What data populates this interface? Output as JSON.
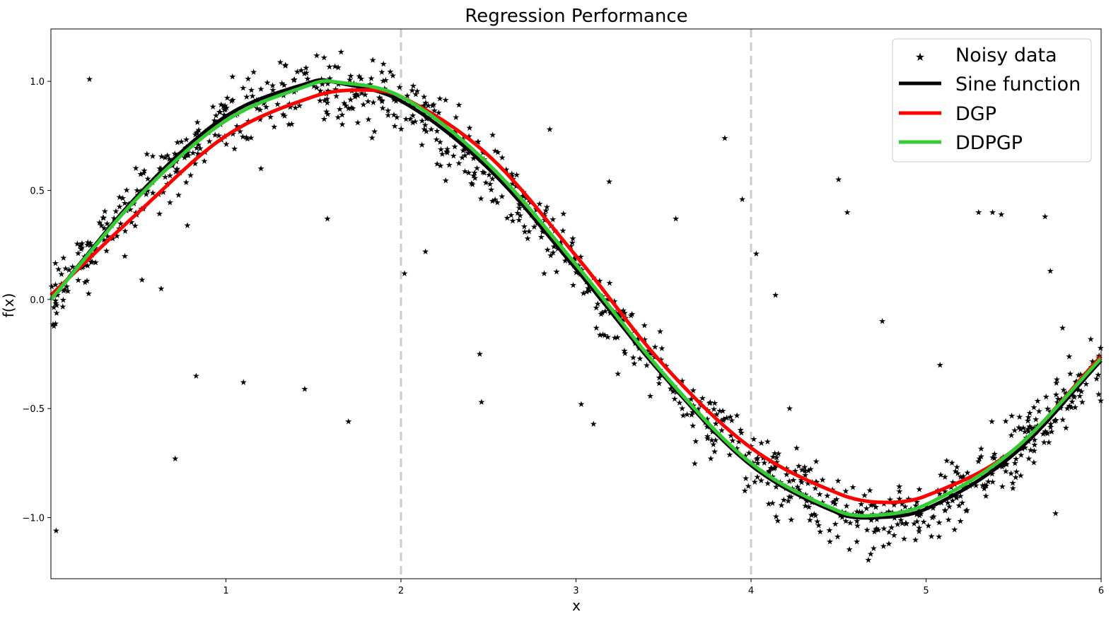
{
  "chart_data": {
    "type": "line",
    "title": "Regression Performance",
    "xlabel": "x",
    "ylabel": "f(x)",
    "xlim": [
      0,
      6
    ],
    "ylim": [
      -1.28,
      1.24
    ],
    "xticks": [
      1,
      2,
      3,
      4,
      5,
      6
    ],
    "yticks": [
      -1.0,
      -0.5,
      0.0,
      0.5,
      1.0
    ],
    "xtick_labels": [
      "1",
      "2",
      "3",
      "4",
      "5",
      "6"
    ],
    "ytick_labels": [
      "−1.0",
      "−0.5",
      "0.0",
      "0.5",
      "1.0"
    ],
    "vertical_reference_lines": [
      2,
      4
    ],
    "grid": false,
    "legend_position": "top-right",
    "series": [
      {
        "name": "Noisy data",
        "kind": "scatter",
        "marker": "star",
        "color": "#808080"
      },
      {
        "name": "Sine function",
        "kind": "line",
        "color": "#000000"
      },
      {
        "name": "DGP",
        "kind": "line",
        "color": "#ff0000"
      },
      {
        "name": "DDPGP",
        "kind": "line",
        "color": "#33cc33"
      }
    ],
    "sine_function": {
      "x": [
        0,
        0.5,
        1.0,
        1.5,
        1.6,
        2.0,
        2.5,
        3.0,
        3.5,
        4.0,
        4.5,
        4.7,
        5.0,
        5.5,
        6.0
      ],
      "y": [
        0.0,
        0.48,
        0.84,
        1.0,
        1.0,
        0.91,
        0.6,
        0.14,
        -0.35,
        -0.76,
        -0.98,
        -1.0,
        -0.96,
        -0.71,
        -0.28
      ]
    },
    "dgp": {
      "x": [
        0,
        0.5,
        1.0,
        1.5,
        1.75,
        2.0,
        2.5,
        3.0,
        3.5,
        4.0,
        4.5,
        4.75,
        5.0,
        5.5,
        6.0
      ],
      "y": [
        0.02,
        0.4,
        0.75,
        0.93,
        0.96,
        0.93,
        0.66,
        0.2,
        -0.3,
        -0.68,
        -0.89,
        -0.93,
        -0.9,
        -0.69,
        -0.26
      ]
    },
    "ddpgp": {
      "x": [
        0,
        0.5,
        1.0,
        1.5,
        1.6,
        2.0,
        2.5,
        3.0,
        3.5,
        4.0,
        4.5,
        4.7,
        5.0,
        5.5,
        6.0
      ],
      "y": [
        0.0,
        0.47,
        0.82,
        0.99,
        1.0,
        0.93,
        0.62,
        0.16,
        -0.34,
        -0.75,
        -0.97,
        -0.99,
        -0.94,
        -0.69,
        -0.27
      ]
    },
    "noisy_data_outliers": {
      "x": [
        0.03,
        0.22,
        0.52,
        0.63,
        0.71,
        0.78,
        0.83,
        1.1,
        1.2,
        1.45,
        1.58,
        1.7,
        2.02,
        2.14,
        2.45,
        2.46,
        2.85,
        3.03,
        3.1,
        3.19,
        3.57,
        3.77,
        3.85,
        3.95,
        4.03,
        4.14,
        4.22,
        4.5,
        4.55,
        4.75,
        5.08,
        5.3,
        5.38,
        5.43,
        5.68,
        5.71,
        5.74,
        5.78
      ],
      "y": [
        -1.06,
        1.01,
        0.09,
        0.05,
        -0.73,
        0.34,
        -0.35,
        -0.38,
        0.6,
        -0.41,
        0.37,
        -0.56,
        0.12,
        0.22,
        -0.25,
        -0.47,
        0.78,
        -0.48,
        -0.57,
        0.54,
        0.37,
        -0.73,
        0.74,
        0.46,
        0.21,
        0.02,
        -0.5,
        0.55,
        0.4,
        -0.1,
        -0.3,
        0.4,
        0.4,
        0.39,
        0.38,
        0.13,
        -0.98,
        -0.13
      ]
    },
    "noise_sd": 0.08,
    "n_points": 1000
  }
}
